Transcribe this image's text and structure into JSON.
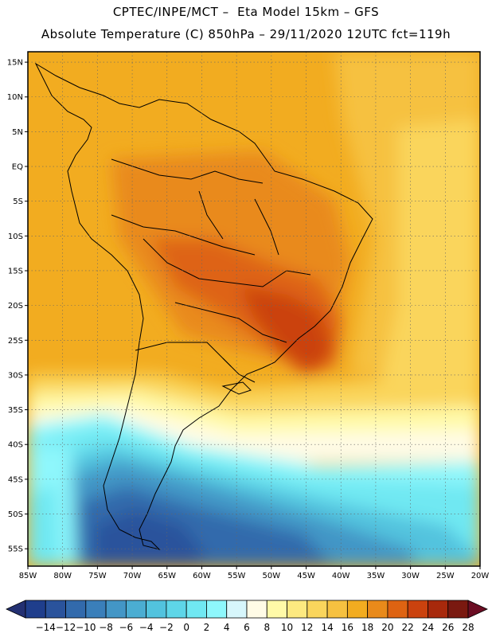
{
  "header": {
    "title_line1": "CPTEC/INPE/MCT –  Eta Model 15km – GFS",
    "title_line2": "Absolute Temperature (C) 850hPa – 29/11/2020 12UTC fct=119h"
  },
  "map": {
    "lon_labels": [
      "85W",
      "80W",
      "75W",
      "70W",
      "65W",
      "60W",
      "55W",
      "50W",
      "45W",
      "40W",
      "35W",
      "30W",
      "25W",
      "20W"
    ],
    "lat_labels": [
      "15N",
      "10N",
      "5N",
      "EQ",
      "5S",
      "10S",
      "15S",
      "20S",
      "25S",
      "30S",
      "35S",
      "40S",
      "45S",
      "50S",
      "55S"
    ],
    "lon_range": [
      -85,
      -20
    ],
    "lat_range": [
      -57.5,
      16.5
    ],
    "grid": true
  },
  "legend": {
    "labels": [
      "-14",
      "-12",
      "-10",
      "-8",
      "-6",
      "-4",
      "-2",
      "0",
      "2",
      "4",
      "6",
      "8",
      "10",
      "12",
      "14",
      "16",
      "18",
      "20",
      "22",
      "24",
      "26",
      "28"
    ],
    "colors": [
      "#1f3e8c",
      "#2a539c",
      "#326aac",
      "#3a7fba",
      "#4396c6",
      "#4badd2",
      "#52c3de",
      "#5ed6e8",
      "#70e8f2",
      "#8ef7fc",
      "#d7f6fb",
      "#fffbe6",
      "#fffaa8",
      "#fde980",
      "#fad55c",
      "#f6c140",
      "#f2ac20",
      "#e98a1a",
      "#de6312",
      "#cb420e",
      "#a8290c",
      "#7a1910"
    ],
    "underflow_color": "#233072",
    "overflow_color": "#6b0d23"
  }
}
